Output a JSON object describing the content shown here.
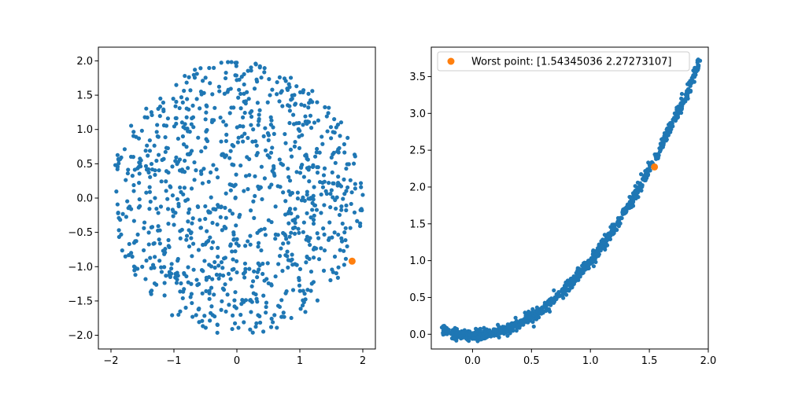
{
  "chart_data": [
    {
      "type": "scatter",
      "xlim": [
        -2.2,
        2.2
      ],
      "ylim": [
        -2.2,
        2.2
      ],
      "xticks": [
        -2,
        -1,
        0,
        1,
        2
      ],
      "yticks": [
        -2.0,
        -1.5,
        -1.0,
        -0.5,
        0.0,
        0.5,
        1.0,
        1.5,
        2.0
      ],
      "xtick_labels": [
        "−2",
        "−1",
        "0",
        "1",
        "2"
      ],
      "ytick_labels": [
        "−2.0",
        "−1.5",
        "−1.0",
        "−0.5",
        "0.0",
        "0.5",
        "1.0",
        "1.5",
        "2.0"
      ],
      "grid": false,
      "series": [
        {
          "color": "#1f77b4",
          "marker": "dot",
          "count": 1000,
          "distribution": "uniform-disk",
          "center": [
            0,
            0
          ],
          "radius": 2.0
        },
        {
          "color": "#ff7f0e",
          "marker": "dot",
          "points": [
            [
              1.83,
              -0.92
            ]
          ]
        }
      ]
    },
    {
      "type": "scatter",
      "xlim": [
        -0.35,
        2.0
      ],
      "ylim": [
        -0.2,
        3.9
      ],
      "xticks": [
        0.0,
        0.5,
        1.0,
        1.5,
        2.0
      ],
      "yticks": [
        0.0,
        0.5,
        1.0,
        1.5,
        2.0,
        2.5,
        3.0,
        3.5
      ],
      "xtick_labels": [
        "0.0",
        "0.5",
        "1.0",
        "1.5",
        "2.0"
      ],
      "ytick_labels": [
        "0.0",
        "0.5",
        "1.0",
        "1.5",
        "2.0",
        "2.5",
        "3.0",
        "3.5"
      ],
      "grid": false,
      "legend_position": "top-left",
      "series": [
        {
          "color": "#1f77b4",
          "marker": "dot",
          "count": 1000,
          "shape": "parabola",
          "x_range": [
            -0.25,
            1.93
          ]
        },
        {
          "name": "Worst point: [1.54345036 2.27273107]",
          "color": "#ff7f0e",
          "marker": "dot",
          "points": [
            [
              1.54345036,
              2.27273107
            ]
          ]
        }
      ]
    }
  ]
}
